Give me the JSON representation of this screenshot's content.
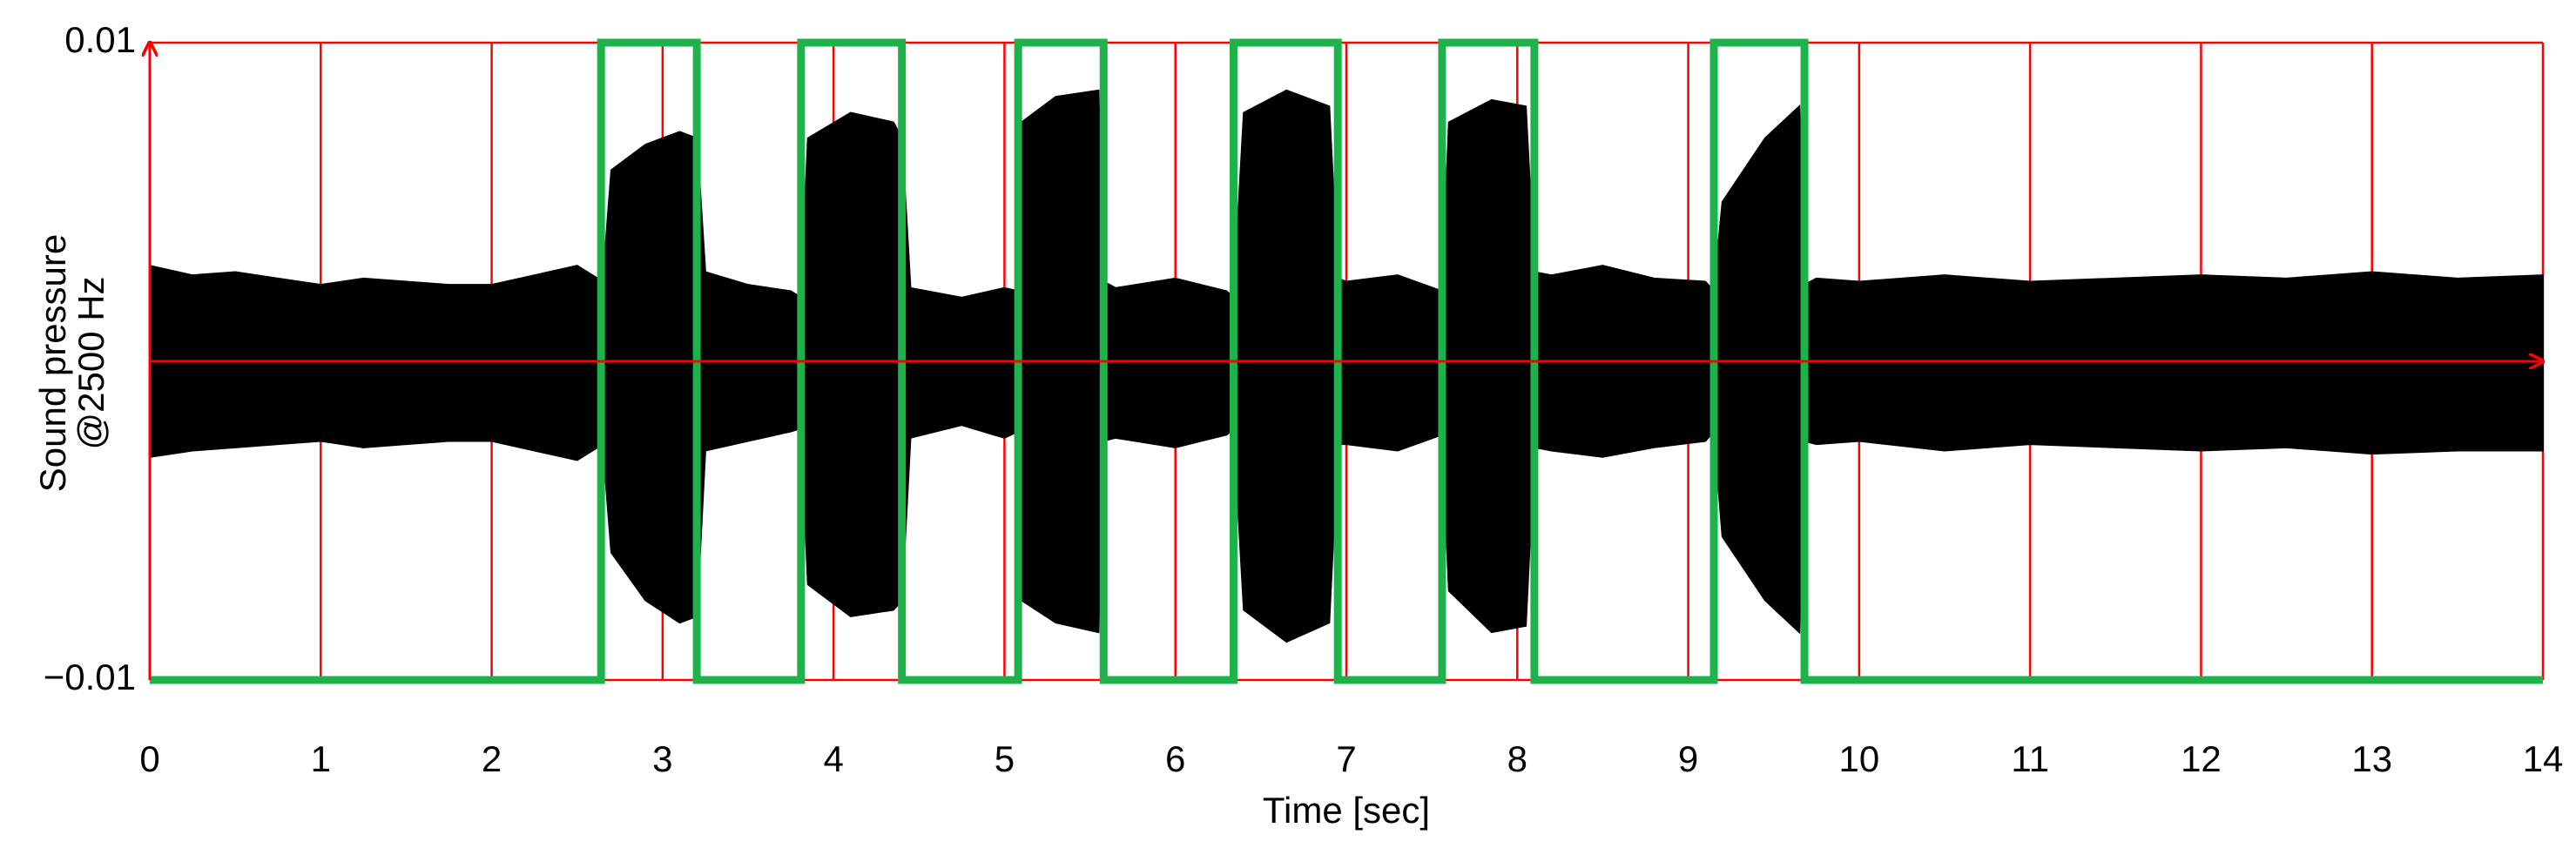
{
  "chart_data": {
    "type": "line",
    "xlabel": "Time [sec]",
    "ylabel": [
      "Sound pressure",
      "@2500 Hz"
    ],
    "xlim": [
      0,
      14
    ],
    "xticks": [
      0,
      1,
      2,
      3,
      4,
      5,
      6,
      7,
      8,
      9,
      10,
      11,
      12,
      13,
      14
    ],
    "ylim": [
      -0.01,
      0.01
    ],
    "yticks": [
      {
        "value": -0.01,
        "label": "−0.01"
      },
      0.01
    ],
    "grid": true,
    "grid_color": "#ff0000",
    "series": [
      {
        "color": "#000000",
        "area": true,
        "x": [
          0,
          0.25,
          0.5,
          0.75,
          1,
          1.25,
          1.5,
          1.75,
          2,
          2.25,
          2.5,
          2.65,
          2.7,
          2.9,
          3.1,
          3.2,
          3.25,
          3.5,
          3.75,
          3.81,
          3.85,
          4.1,
          4.35,
          4.4,
          4.45,
          4.75,
          5,
          5.08,
          5.1,
          5.3,
          5.55,
          5.58,
          5.65,
          6,
          6.3,
          6.34,
          6.4,
          6.65,
          6.9,
          6.95,
          7,
          7.3,
          7.56,
          7.6,
          7.85,
          8.05,
          8.1,
          8.2,
          8.5,
          8.8,
          9.1,
          9.15,
          9.2,
          9.45,
          9.65,
          9.68,
          9.75,
          10,
          10.5,
          11,
          11.5,
          12,
          12.5,
          13,
          13.5,
          14
        ],
        "values": [
          0.003,
          0.0027,
          0.0028,
          0.0026,
          0.0024,
          0.0026,
          0.0025,
          0.0024,
          0.0024,
          0.0027,
          0.003,
          0.0025,
          0.006,
          0.0068,
          0.0072,
          0.007,
          0.0028,
          0.0024,
          0.0022,
          0.002,
          0.007,
          0.0078,
          0.0075,
          0.007,
          0.0023,
          0.002,
          0.0023,
          0.0022,
          0.0075,
          0.0083,
          0.0085,
          0.0025,
          0.0023,
          0.0026,
          0.0022,
          0.002,
          0.0078,
          0.0085,
          0.008,
          0.0026,
          0.0025,
          0.0027,
          0.0022,
          0.0075,
          0.0082,
          0.008,
          0.0028,
          0.0027,
          0.003,
          0.0026,
          0.0025,
          0.0022,
          0.005,
          0.007,
          0.008,
          0.0024,
          0.0026,
          0.0025,
          0.0027,
          0.0025,
          0.0026,
          0.0027,
          0.0026,
          0.0028,
          0.0026,
          0.0027
        ]
      },
      {
        "color": "#000000",
        "area": true,
        "x": [
          0,
          0.25,
          0.5,
          0.75,
          1,
          1.25,
          1.5,
          1.75,
          2,
          2.25,
          2.5,
          2.65,
          2.7,
          2.9,
          3.1,
          3.2,
          3.25,
          3.5,
          3.75,
          3.81,
          3.85,
          4.1,
          4.35,
          4.4,
          4.45,
          4.75,
          5,
          5.08,
          5.1,
          5.3,
          5.55,
          5.58,
          5.65,
          6,
          6.3,
          6.34,
          6.4,
          6.65,
          6.9,
          6.95,
          7,
          7.3,
          7.56,
          7.6,
          7.85,
          8.05,
          8.1,
          8.2,
          8.5,
          8.8,
          9.1,
          9.15,
          9.2,
          9.45,
          9.65,
          9.68,
          9.75,
          10,
          10.5,
          11,
          11.5,
          12,
          12.5,
          13,
          13.5,
          14
        ],
        "values": [
          -0.003,
          -0.0028,
          -0.0027,
          -0.0026,
          -0.0025,
          -0.0027,
          -0.0026,
          -0.0025,
          -0.0025,
          -0.0028,
          -0.0031,
          -0.0026,
          -0.006,
          -0.0075,
          -0.0082,
          -0.008,
          -0.0028,
          -0.0025,
          -0.0022,
          -0.0021,
          -0.007,
          -0.008,
          -0.0078,
          -0.0075,
          -0.0024,
          -0.002,
          -0.0024,
          -0.0022,
          -0.0075,
          -0.0082,
          -0.0085,
          -0.0025,
          -0.0024,
          -0.0027,
          -0.0023,
          -0.0021,
          -0.0078,
          -0.0088,
          -0.0082,
          -0.0026,
          -0.0026,
          -0.0028,
          -0.0023,
          -0.0072,
          -0.0085,
          -0.0083,
          -0.0027,
          -0.0028,
          -0.003,
          -0.0027,
          -0.0025,
          -0.0022,
          -0.0055,
          -0.0075,
          -0.0085,
          -0.0025,
          -0.0026,
          -0.0025,
          -0.0028,
          -0.0026,
          -0.0027,
          -0.0028,
          -0.0027,
          -0.0029,
          -0.0028,
          -0.0028
        ]
      },
      {
        "color": "#1db34a",
        "area": false,
        "x": [
          0,
          2.64,
          2.64,
          3.2,
          3.2,
          3.81,
          3.81,
          4.4,
          4.4,
          5.08,
          5.08,
          5.58,
          5.58,
          6.34,
          6.34,
          6.95,
          6.95,
          7.56,
          7.56,
          8.1,
          8.1,
          9.15,
          9.15,
          9.68,
          9.68,
          14
        ],
        "values": [
          -0.01,
          -0.01,
          0.01,
          0.01,
          -0.01,
          -0.01,
          0.01,
          0.01,
          -0.01,
          -0.01,
          0.01,
          0.01,
          -0.01,
          -0.01,
          0.01,
          0.01,
          -0.01,
          -0.01,
          0.01,
          0.01,
          -0.01,
          -0.01,
          0.01,
          0.01,
          -0.01,
          -0.01
        ]
      }
    ]
  }
}
